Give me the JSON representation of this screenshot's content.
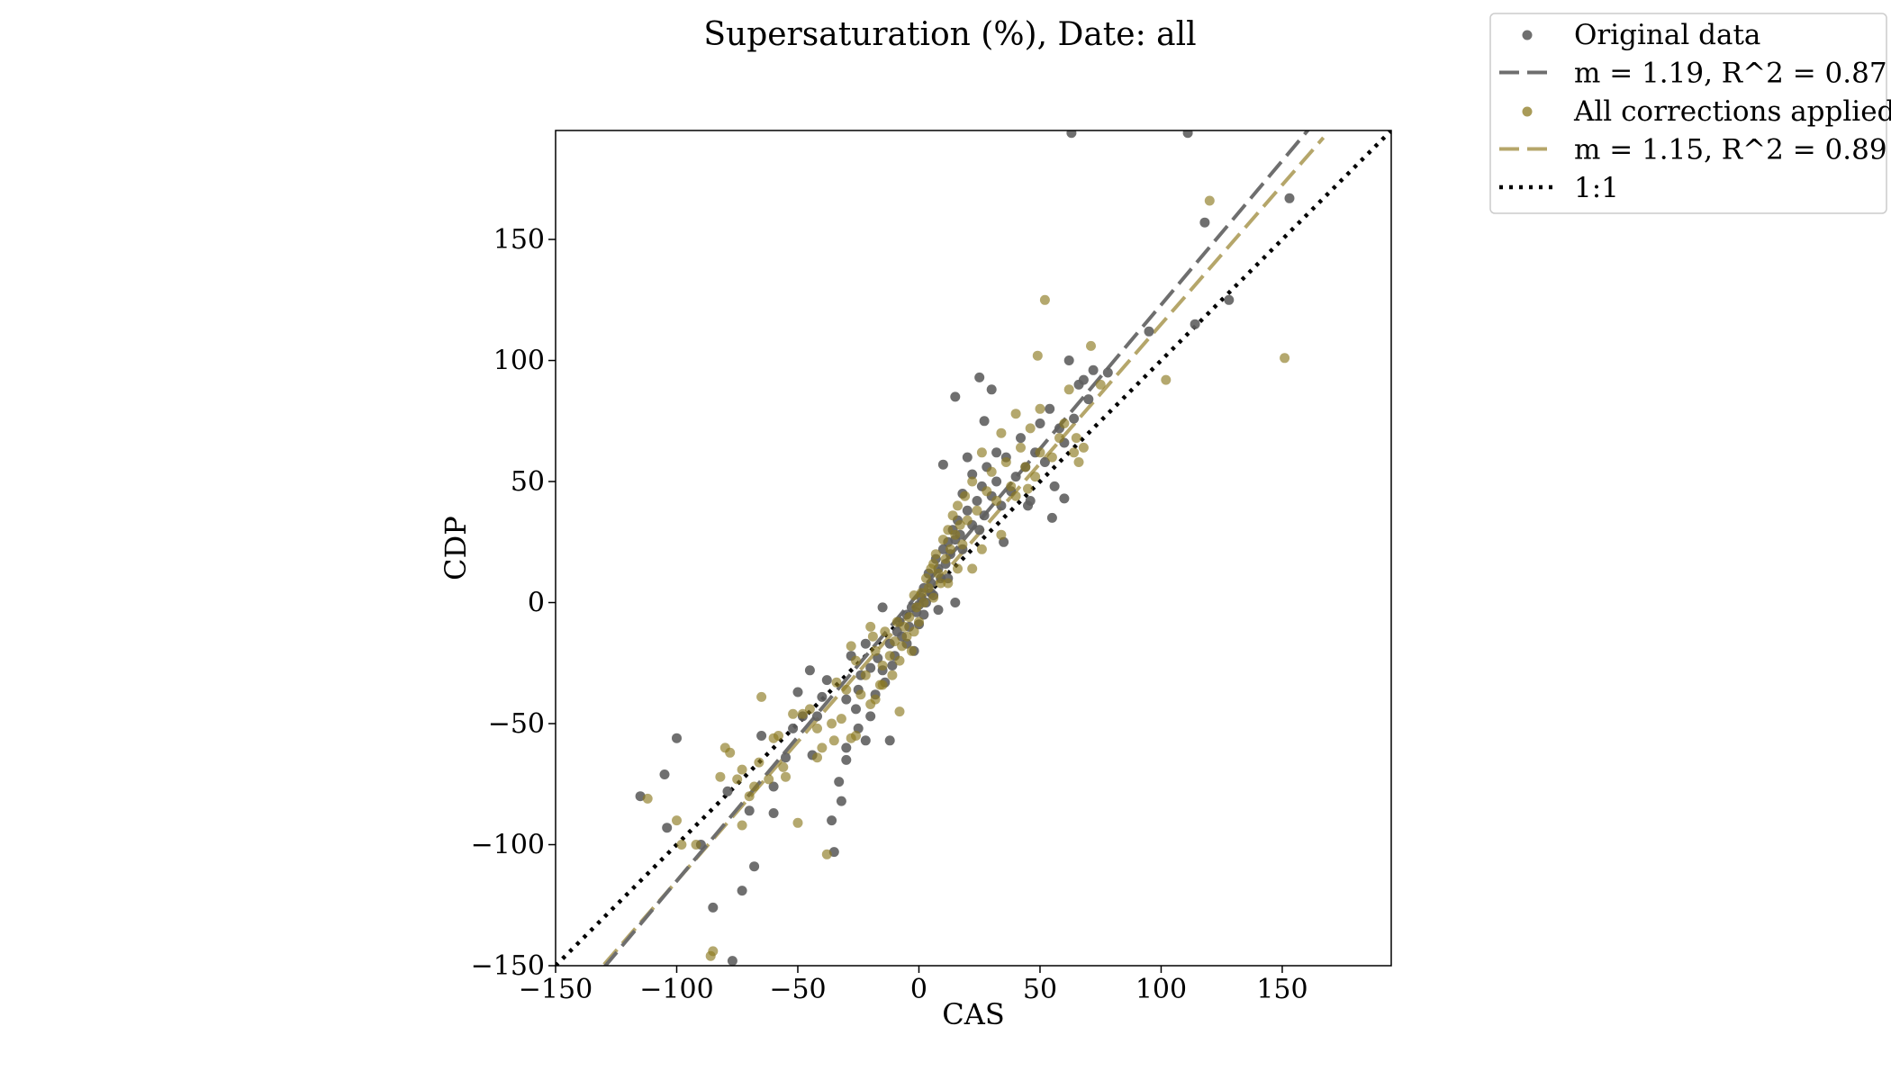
{
  "chart_data": {
    "type": "scatter",
    "title": "Supersaturation (%), Date: all",
    "xlabel": "CAS",
    "ylabel": "CDP",
    "xlim": [
      -150,
      195
    ],
    "ylim": [
      -150,
      195
    ],
    "xticks": [
      -150,
      -100,
      -50,
      0,
      50,
      100,
      150
    ],
    "yticks": [
      -150,
      -100,
      -50,
      0,
      50,
      100,
      150
    ],
    "xtick_labels": [
      "−150",
      "−100",
      "−50",
      "0",
      "50",
      "100",
      "150"
    ],
    "ytick_labels": [
      "−150",
      "−100",
      "−50",
      "0",
      "50",
      "100",
      "150"
    ],
    "grid": false,
    "legend_position": "outside top-right",
    "colors": {
      "original_points": "#5f5f5f",
      "original_fit": "#6e6e6e",
      "corrected_points": "#8c7a20",
      "corrected_fit": "#b5a66a",
      "one_to_one": "#000000"
    },
    "series": [
      {
        "name": "Original data",
        "kind": "scatter",
        "points": [
          [
            -115,
            -80
          ],
          [
            -100,
            -56
          ],
          [
            -105,
            -71
          ],
          [
            -104,
            -93
          ],
          [
            -85,
            -126
          ],
          [
            -77,
            -148
          ],
          [
            -73,
            -119
          ],
          [
            -68,
            -109
          ],
          [
            -90,
            -100
          ],
          [
            -79,
            -78
          ],
          [
            -70,
            -86
          ],
          [
            -60,
            -76
          ],
          [
            -55,
            -64
          ],
          [
            -52,
            -52
          ],
          [
            -48,
            -47
          ],
          [
            -45,
            -28
          ],
          [
            -40,
            -39
          ],
          [
            -42,
            -47
          ],
          [
            -38,
            -32
          ],
          [
            -36,
            -90
          ],
          [
            -35,
            -103
          ],
          [
            -33,
            -74
          ],
          [
            -30,
            -60
          ],
          [
            -30,
            -40
          ],
          [
            -28,
            -22
          ],
          [
            -25,
            -36
          ],
          [
            -26,
            -44
          ],
          [
            -24,
            -30
          ],
          [
            -22,
            -17
          ],
          [
            -20,
            -27
          ],
          [
            -18,
            -38
          ],
          [
            -17,
            -23
          ],
          [
            -15,
            -28
          ],
          [
            -14,
            -33
          ],
          [
            -12,
            -17
          ],
          [
            -11,
            -26
          ],
          [
            -10,
            -22
          ],
          [
            -9,
            -12
          ],
          [
            -8,
            -8
          ],
          [
            -7,
            -14
          ],
          [
            -5,
            -5
          ],
          [
            -4,
            -10
          ],
          [
            -3,
            -2
          ],
          [
            -2,
            -20
          ],
          [
            -1,
            -4
          ],
          [
            0,
            -1
          ],
          [
            1,
            2
          ],
          [
            2,
            6
          ],
          [
            3,
            0
          ],
          [
            4,
            12
          ],
          [
            5,
            8
          ],
          [
            6,
            3
          ],
          [
            7,
            18
          ],
          [
            8,
            14
          ],
          [
            9,
            10
          ],
          [
            10,
            22
          ],
          [
            11,
            16
          ],
          [
            12,
            25
          ],
          [
            13,
            20
          ],
          [
            14,
            30
          ],
          [
            15,
            26
          ],
          [
            16,
            34
          ],
          [
            17,
            28
          ],
          [
            18,
            22
          ],
          [
            20,
            38
          ],
          [
            22,
            32
          ],
          [
            24,
            42
          ],
          [
            25,
            30
          ],
          [
            26,
            48
          ],
          [
            27,
            36
          ],
          [
            28,
            56
          ],
          [
            30,
            44
          ],
          [
            32,
            50
          ],
          [
            34,
            40
          ],
          [
            36,
            60
          ],
          [
            38,
            46
          ],
          [
            40,
            52
          ],
          [
            42,
            68
          ],
          [
            44,
            56
          ],
          [
            46,
            42
          ],
          [
            48,
            62
          ],
          [
            50,
            74
          ],
          [
            52,
            58
          ],
          [
            54,
            80
          ],
          [
            56,
            48
          ],
          [
            58,
            72
          ],
          [
            60,
            66
          ],
          [
            62,
            100
          ],
          [
            64,
            76
          ],
          [
            66,
            90
          ],
          [
            68,
            92
          ],
          [
            70,
            84
          ],
          [
            72,
            96
          ],
          [
            10,
            57
          ],
          [
            15,
            85
          ],
          [
            25,
            93
          ],
          [
            30,
            88
          ],
          [
            20,
            60
          ],
          [
            12,
            10
          ],
          [
            15,
            0
          ],
          [
            8,
            -3
          ],
          [
            -12,
            -57
          ],
          [
            -20,
            -47
          ],
          [
            -25,
            -52
          ],
          [
            -32,
            -82
          ],
          [
            -60,
            -87
          ],
          [
            -65,
            -55
          ],
          [
            -50,
            -37
          ],
          [
            -15,
            -2
          ],
          [
            -5,
            -17
          ],
          [
            0,
            -9
          ],
          [
            2,
            -5
          ],
          [
            5,
            4
          ],
          [
            18,
            45
          ],
          [
            35,
            25
          ],
          [
            45,
            40
          ],
          [
            55,
            35
          ],
          [
            60,
            43
          ],
          [
            63,
            194
          ],
          [
            111,
            194
          ],
          [
            118,
            157
          ],
          [
            114,
            115
          ],
          [
            128,
            125
          ],
          [
            153,
            167
          ],
          [
            95,
            112
          ],
          [
            78,
            95
          ],
          [
            32,
            62
          ],
          [
            27,
            75
          ],
          [
            22,
            53
          ],
          [
            -22,
            -57
          ],
          [
            -30,
            -65
          ],
          [
            -44,
            -63
          ]
        ]
      },
      {
        "name": "m = 1.19, R^2 = 0.87",
        "kind": "line",
        "slope": 1.19,
        "intercept": 4,
        "x_range": [
          -130,
          163
        ]
      },
      {
        "name": "All corrections applied",
        "kind": "scatter",
        "points": [
          [
            -112,
            -81
          ],
          [
            -100,
            -90
          ],
          [
            -98,
            -100
          ],
          [
            -92,
            -100
          ],
          [
            -85,
            -144
          ],
          [
            -86,
            -146
          ],
          [
            -80,
            -60
          ],
          [
            -78,
            -62
          ],
          [
            -75,
            -73
          ],
          [
            -73,
            -69
          ],
          [
            -70,
            -80
          ],
          [
            -68,
            -76
          ],
          [
            -66,
            -66
          ],
          [
            -65,
            -39
          ],
          [
            -60,
            -56
          ],
          [
            -58,
            -55
          ],
          [
            -56,
            -68
          ],
          [
            -55,
            -72
          ],
          [
            -50,
            -91
          ],
          [
            -48,
            -46
          ],
          [
            -45,
            -44
          ],
          [
            -42,
            -64
          ],
          [
            -40,
            -60
          ],
          [
            -38,
            -104
          ],
          [
            -36,
            -50
          ],
          [
            -34,
            -33
          ],
          [
            -32,
            -48
          ],
          [
            -30,
            -36
          ],
          [
            -28,
            -56
          ],
          [
            -26,
            -24
          ],
          [
            -24,
            -38
          ],
          [
            -22,
            -30
          ],
          [
            -20,
            -42
          ],
          [
            -19,
            -14
          ],
          [
            -18,
            -20
          ],
          [
            -16,
            -34
          ],
          [
            -15,
            -26
          ],
          [
            -14,
            -12
          ],
          [
            -12,
            -22
          ],
          [
            -11,
            -30
          ],
          [
            -10,
            -16
          ],
          [
            -9,
            -8
          ],
          [
            -8,
            -24
          ],
          [
            -7,
            -18
          ],
          [
            -6,
            -10
          ],
          [
            -5,
            -14
          ],
          [
            -4,
            -6
          ],
          [
            -3,
            -20
          ],
          [
            -2,
            -12
          ],
          [
            -1,
            -2
          ],
          [
            0,
            -8
          ],
          [
            1,
            4
          ],
          [
            2,
            0
          ],
          [
            3,
            10
          ],
          [
            4,
            6
          ],
          [
            5,
            14
          ],
          [
            6,
            2
          ],
          [
            7,
            20
          ],
          [
            8,
            12
          ],
          [
            9,
            8
          ],
          [
            10,
            26
          ],
          [
            11,
            18
          ],
          [
            12,
            30
          ],
          [
            13,
            22
          ],
          [
            14,
            36
          ],
          [
            15,
            28
          ],
          [
            16,
            40
          ],
          [
            17,
            32
          ],
          [
            18,
            24
          ],
          [
            19,
            44
          ],
          [
            20,
            34
          ],
          [
            22,
            50
          ],
          [
            24,
            38
          ],
          [
            26,
            62
          ],
          [
            28,
            46
          ],
          [
            30,
            54
          ],
          [
            32,
            42
          ],
          [
            34,
            70
          ],
          [
            36,
            58
          ],
          [
            38,
            48
          ],
          [
            40,
            78
          ],
          [
            42,
            64
          ],
          [
            44,
            56
          ],
          [
            46,
            72
          ],
          [
            48,
            52
          ],
          [
            50,
            80
          ],
          [
            52,
            125
          ],
          [
            55,
            60
          ],
          [
            58,
            68
          ],
          [
            60,
            74
          ],
          [
            62,
            88
          ],
          [
            66,
            58
          ],
          [
            71,
            106
          ],
          [
            75,
            90
          ],
          [
            102,
            92
          ],
          [
            120,
            166
          ],
          [
            151,
            101
          ],
          [
            49,
            102
          ],
          [
            -8,
            -45
          ],
          [
            -18,
            -40
          ],
          [
            -15,
            -34
          ],
          [
            -26,
            -55
          ],
          [
            -35,
            -57
          ],
          [
            -42,
            -52
          ],
          [
            -52,
            -46
          ],
          [
            -62,
            -73
          ],
          [
            -73,
            -92
          ],
          [
            -82,
            -72
          ],
          [
            -28,
            -18
          ],
          [
            -2,
            3
          ],
          [
            6,
            16
          ],
          [
            16,
            14
          ],
          [
            26,
            22
          ],
          [
            34,
            28
          ],
          [
            40,
            44
          ],
          [
            45,
            47
          ],
          [
            50,
            62
          ],
          [
            64,
            62
          ],
          [
            68,
            64
          ],
          [
            65,
            68
          ],
          [
            22,
            14
          ],
          [
            12,
            8
          ],
          [
            -20,
            -10
          ]
        ]
      },
      {
        "name": "m = 1.15, R^2 = 0.89",
        "kind": "line",
        "slope": 1.15,
        "intercept": 0,
        "x_range": [
          -130,
          167
        ]
      },
      {
        "name": "1:1",
        "kind": "line",
        "slope": 1,
        "intercept": 0,
        "x_range": [
          -150,
          195
        ]
      }
    ]
  }
}
